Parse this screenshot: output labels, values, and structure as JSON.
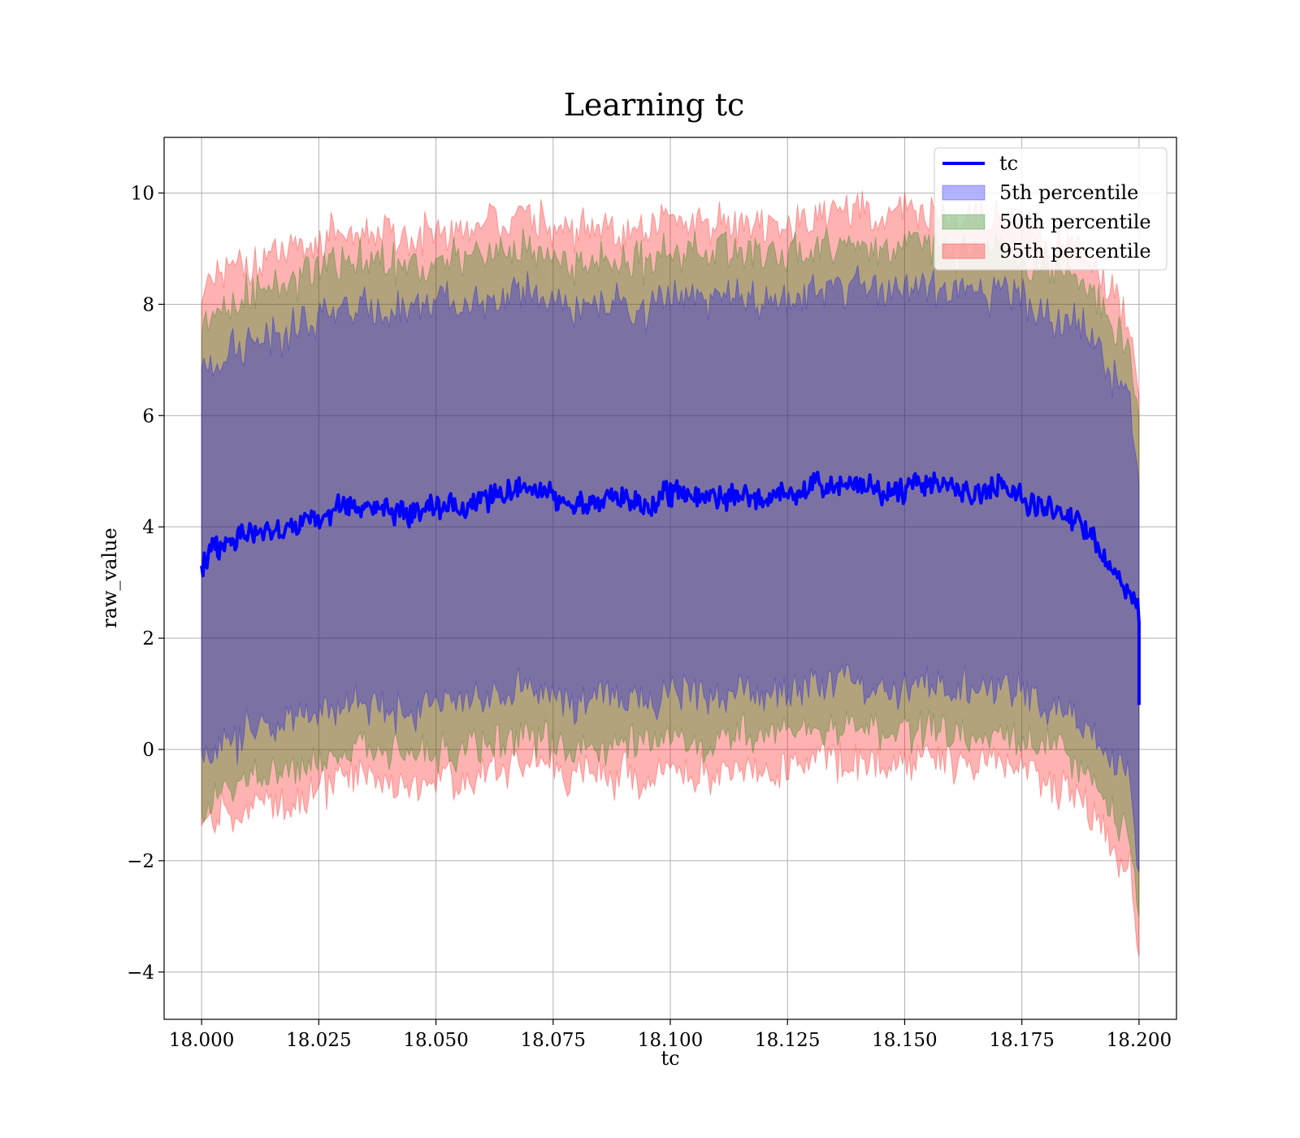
{
  "chart_data": {
    "type": "line",
    "title": "Learning tc",
    "xlabel": "tc",
    "ylabel": "raw_value",
    "xlim": [
      17.992,
      18.208
    ],
    "ylim": [
      -4.85,
      11.0
    ],
    "xticks": [
      "18.000",
      "18.025",
      "18.050",
      "18.075",
      "18.100",
      "18.125",
      "18.150",
      "18.175",
      "18.200"
    ],
    "xtick_values": [
      18.0,
      18.025,
      18.05,
      18.075,
      18.1,
      18.125,
      18.15,
      18.175,
      18.2
    ],
    "yticks": [
      "−4",
      "−2",
      "0",
      "2",
      "4",
      "6",
      "8",
      "10"
    ],
    "ytick_values": [
      -4,
      -2,
      0,
      2,
      4,
      6,
      8,
      10
    ],
    "grid": true,
    "legend_position": "top-right",
    "legend": [
      {
        "name": "tc",
        "kind": "line",
        "color": "#0000ff"
      },
      {
        "name": "5th percentile",
        "kind": "patch",
        "color": "#0000ff"
      },
      {
        "name": "50th percentile",
        "kind": "patch",
        "color": "#008000"
      },
      {
        "name": "95th percentile",
        "kind": "patch",
        "color": "#ff0000"
      }
    ],
    "series": [
      {
        "name": "tc",
        "color": "#0000ff",
        "x": [
          18.0,
          18.005,
          18.01,
          18.015,
          18.02,
          18.025,
          18.03,
          18.035,
          18.04,
          18.045,
          18.05,
          18.055,
          18.06,
          18.065,
          18.07,
          18.075,
          18.08,
          18.085,
          18.09,
          18.095,
          18.1,
          18.105,
          18.11,
          18.115,
          18.12,
          18.125,
          18.13,
          18.135,
          18.14,
          18.145,
          18.15,
          18.155,
          18.16,
          18.165,
          18.17,
          18.175,
          18.18,
          18.185,
          18.19,
          18.193,
          18.195,
          18.198,
          18.2,
          18.2
        ],
        "y": [
          3.35,
          3.7,
          3.9,
          3.95,
          4.0,
          4.2,
          4.35,
          4.4,
          4.3,
          4.25,
          4.4,
          4.3,
          4.5,
          4.6,
          4.7,
          4.45,
          4.4,
          4.45,
          4.5,
          4.4,
          4.65,
          4.55,
          4.5,
          4.6,
          4.5,
          4.6,
          4.7,
          4.75,
          4.8,
          4.6,
          4.7,
          4.85,
          4.65,
          4.6,
          4.75,
          4.5,
          4.3,
          4.2,
          3.9,
          3.3,
          3.1,
          2.9,
          2.5,
          0.8
        ]
      },
      {
        "name": "5th percentile",
        "color": "#0000ff",
        "x": [
          18.0,
          18.005,
          18.01,
          18.015,
          18.02,
          18.025,
          18.03,
          18.035,
          18.04,
          18.045,
          18.05,
          18.055,
          18.06,
          18.065,
          18.07,
          18.075,
          18.08,
          18.085,
          18.09,
          18.095,
          18.1,
          18.105,
          18.11,
          18.115,
          18.12,
          18.125,
          18.13,
          18.135,
          18.14,
          18.145,
          18.15,
          18.155,
          18.16,
          18.165,
          18.17,
          18.175,
          18.18,
          18.185,
          18.19,
          18.193,
          18.195,
          18.198,
          18.2
        ],
        "lower": [
          -0.2,
          0.1,
          0.3,
          0.4,
          0.5,
          0.65,
          0.8,
          0.85,
          0.75,
          0.7,
          0.85,
          0.8,
          0.95,
          1.05,
          1.1,
          0.9,
          0.85,
          0.9,
          0.95,
          0.85,
          1.05,
          0.95,
          0.95,
          1.05,
          0.95,
          1.05,
          1.15,
          1.2,
          1.2,
          1.05,
          1.15,
          1.25,
          1.05,
          1.05,
          1.15,
          0.95,
          0.8,
          0.7,
          0.35,
          -0.1,
          -0.3,
          -0.6,
          -2.4
        ],
        "upper": [
          6.9,
          7.2,
          7.4,
          7.5,
          7.6,
          7.8,
          7.95,
          8.0,
          7.9,
          7.85,
          8.0,
          7.9,
          8.05,
          8.15,
          8.25,
          8.0,
          7.95,
          8.0,
          8.05,
          7.95,
          8.2,
          8.1,
          8.05,
          8.15,
          8.05,
          8.15,
          8.25,
          8.3,
          8.35,
          8.15,
          8.25,
          8.35,
          8.2,
          8.15,
          8.25,
          8.05,
          7.85,
          7.75,
          7.45,
          6.9,
          6.7,
          6.4,
          5.2
        ]
      },
      {
        "name": "50th percentile",
        "color": "#008000",
        "x": [
          18.0,
          18.005,
          18.01,
          18.015,
          18.02,
          18.025,
          18.03,
          18.035,
          18.04,
          18.045,
          18.05,
          18.055,
          18.06,
          18.065,
          18.07,
          18.075,
          18.08,
          18.085,
          18.09,
          18.095,
          18.1,
          18.105,
          18.11,
          18.115,
          18.12,
          18.125,
          18.13,
          18.135,
          18.14,
          18.145,
          18.15,
          18.155,
          18.16,
          18.165,
          18.17,
          18.175,
          18.18,
          18.185,
          18.19,
          18.193,
          18.195,
          18.198,
          18.2
        ],
        "lower": [
          -1.0,
          -0.7,
          -0.5,
          -0.4,
          -0.3,
          -0.15,
          0.0,
          0.05,
          -0.05,
          -0.1,
          0.05,
          0.0,
          0.15,
          0.25,
          0.3,
          0.1,
          0.05,
          0.1,
          0.15,
          0.05,
          0.25,
          0.15,
          0.15,
          0.25,
          0.15,
          0.25,
          0.35,
          0.4,
          0.4,
          0.25,
          0.35,
          0.45,
          0.25,
          0.25,
          0.35,
          0.15,
          0.0,
          -0.1,
          -0.5,
          -1.0,
          -1.2,
          -1.5,
          -3.0
        ],
        "upper": [
          7.7,
          8.0,
          8.2,
          8.3,
          8.4,
          8.55,
          8.7,
          8.75,
          8.65,
          8.6,
          8.75,
          8.7,
          8.85,
          8.95,
          9.0,
          8.8,
          8.75,
          8.8,
          8.85,
          8.75,
          9.0,
          8.9,
          8.85,
          8.95,
          8.85,
          8.95,
          9.05,
          9.1,
          9.15,
          8.95,
          9.05,
          9.15,
          8.95,
          8.95,
          9.05,
          8.85,
          8.65,
          8.55,
          8.25,
          7.8,
          7.6,
          7.3,
          6.0
        ]
      },
      {
        "name": "95th percentile",
        "color": "#ff0000",
        "x": [
          18.0,
          18.005,
          18.01,
          18.015,
          18.02,
          18.025,
          18.03,
          18.035,
          18.04,
          18.045,
          18.05,
          18.055,
          18.06,
          18.065,
          18.07,
          18.075,
          18.08,
          18.085,
          18.09,
          18.095,
          18.1,
          18.105,
          18.11,
          18.115,
          18.12,
          18.125,
          18.13,
          18.135,
          18.14,
          18.145,
          18.15,
          18.155,
          18.16,
          18.165,
          18.17,
          18.175,
          18.18,
          18.185,
          18.19,
          18.193,
          18.195,
          18.198,
          18.2
        ],
        "lower": [
          -1.5,
          -1.25,
          -1.05,
          -0.95,
          -0.85,
          -0.7,
          -0.55,
          -0.5,
          -0.6,
          -0.65,
          -0.5,
          -0.55,
          -0.4,
          -0.3,
          -0.25,
          -0.45,
          -0.5,
          -0.45,
          -0.4,
          -0.5,
          -0.3,
          -0.4,
          -0.4,
          -0.3,
          -0.4,
          -0.3,
          -0.2,
          -0.15,
          -0.15,
          -0.3,
          -0.2,
          -0.1,
          -0.3,
          -0.3,
          -0.2,
          -0.4,
          -0.55,
          -0.65,
          -1.0,
          -1.5,
          -1.8,
          -2.1,
          -3.9
        ],
        "upper": [
          8.3,
          8.6,
          8.75,
          8.85,
          8.95,
          9.1,
          9.25,
          9.3,
          9.2,
          9.15,
          9.3,
          9.25,
          9.4,
          9.5,
          9.55,
          9.35,
          9.3,
          9.35,
          9.4,
          9.3,
          9.55,
          9.45,
          9.4,
          9.5,
          9.4,
          9.5,
          9.6,
          9.65,
          9.7,
          9.5,
          9.6,
          9.7,
          9.5,
          9.5,
          9.6,
          9.4,
          9.2,
          9.1,
          8.8,
          8.3,
          8.0,
          7.7,
          6.5
        ]
      }
    ]
  }
}
